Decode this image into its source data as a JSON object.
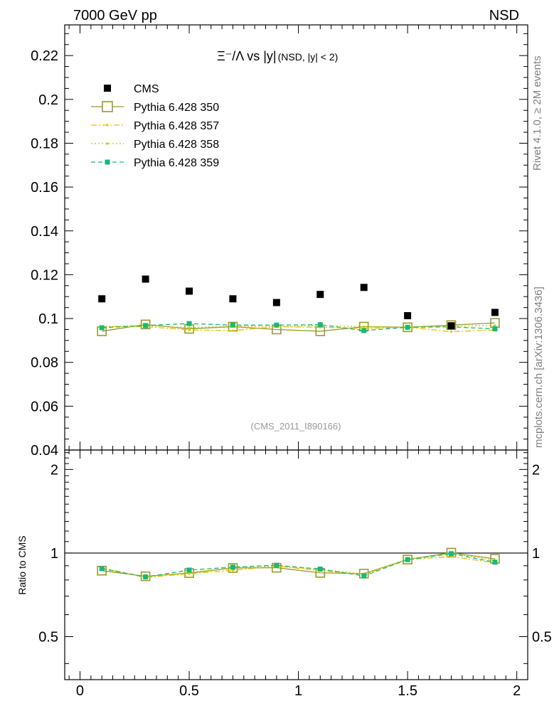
{
  "header": {
    "energy_label": "7000 GeV pp",
    "process_label": "NSD"
  },
  "side": {
    "rivet_label": "Rivet 4.1.0, ≥ 2M events",
    "source_label": "mcplots.cern.ch [arXiv:1306.3436]"
  },
  "chart_data": {
    "type": "scatter",
    "title_main": "Ξ⁻/Λ vs |y|",
    "title_sub": "(NSD, |y| < 2)",
    "analysis_label": "(CMS_2011_I890166)",
    "xlabel": "",
    "ylabel_main": "",
    "ylabel_ratio": "Ratio to CMS",
    "xlim": [
      -0.07,
      2.05
    ],
    "ylim": [
      0.04,
      0.234
    ],
    "ratio_ylim": [
      0.35,
      2.35
    ],
    "x_ticks": [
      0,
      0.5,
      1,
      1.5,
      2
    ],
    "x_tick_labels": [
      "0",
      "0.5",
      "1",
      "1.5",
      "2"
    ],
    "y_ticks": [
      0.04,
      0.06,
      0.08,
      0.1,
      0.12,
      0.14,
      0.16,
      0.18,
      0.2,
      0.22
    ],
    "y_tick_labels": [
      "0.04",
      "0.06",
      "0.08",
      "0.1",
      "0.12",
      "0.14",
      "0.16",
      "0.18",
      "0.2",
      "0.22"
    ],
    "ratio_ticks": [
      0.5,
      1,
      2
    ],
    "ratio_tick_labels": [
      "0.5",
      "1",
      "2"
    ],
    "x": [
      0.1,
      0.3,
      0.5,
      0.7,
      0.9,
      1.1,
      1.3,
      1.5,
      1.7,
      1.9
    ],
    "series": [
      {
        "name": "CMS",
        "color": "#000000",
        "style": "data",
        "values": [
          0.109,
          0.118,
          0.1125,
          0.109,
          0.1073,
          0.111,
          0.1142,
          0.1013,
          0.0967,
          0.1028
        ]
      },
      {
        "name": "Pythia 6.428 350",
        "color": "#9a9a2e",
        "style": "open-square-solid",
        "values": [
          0.0942,
          0.0973,
          0.0953,
          0.0963,
          0.095,
          0.0942,
          0.0963,
          0.096,
          0.097,
          0.098
        ]
      },
      {
        "name": "Pythia 6.428 357",
        "color": "#e6c000",
        "style": "dashdot",
        "values": [
          0.0963,
          0.0963,
          0.0948,
          0.0945,
          0.0963,
          0.096,
          0.0955,
          0.096,
          0.094,
          0.0948
        ]
      },
      {
        "name": "Pythia 6.428 358",
        "color": "#c8c800",
        "style": "dotted",
        "values": [
          0.0963,
          0.0968,
          0.0958,
          0.0965,
          0.0963,
          0.0968,
          0.0963,
          0.0962,
          0.0965,
          0.0968
        ]
      },
      {
        "name": "Pythia 6.428 359",
        "color": "#18b878",
        "style": "dashed-filled-square",
        "values": [
          0.0958,
          0.0968,
          0.0977,
          0.097,
          0.097,
          0.0972,
          0.0945,
          0.096,
          0.0962,
          0.0953
        ]
      }
    ]
  }
}
